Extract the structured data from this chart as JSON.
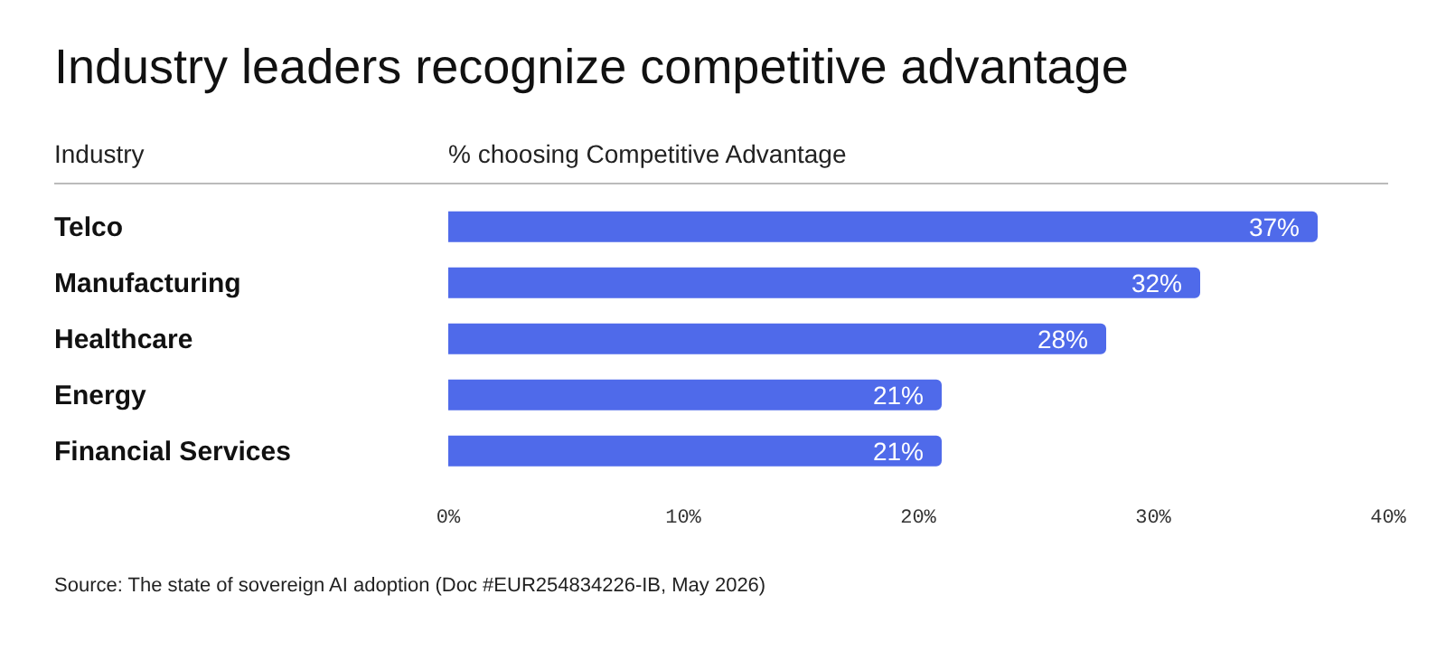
{
  "chart_data": {
    "type": "bar",
    "orientation": "horizontal",
    "title": "Industry leaders recognize competitive advantage",
    "ylabel": "Industry",
    "xlabel": "% choosing Competitive Advantage",
    "categories": [
      "Telco",
      "Manufacturing",
      "Healthcare",
      "Energy",
      "Financial Services"
    ],
    "values": [
      37,
      32,
      28,
      21,
      21
    ],
    "value_labels": [
      "37%",
      "32%",
      "28%",
      "21%",
      "21%"
    ],
    "color": "#4f6aea",
    "xlim": [
      0,
      40
    ],
    "xticks": [
      {
        "value": 0,
        "label": "0%"
      },
      {
        "value": 10,
        "label": "10%"
      },
      {
        "value": 20,
        "label": "20%"
      },
      {
        "value": 30,
        "label": "30%"
      },
      {
        "value": 40,
        "label": "40%"
      }
    ],
    "annotations": [
      "Source: The state of sovereign AI adoption (Doc #EUR254834226-IB, May 2026)"
    ]
  }
}
